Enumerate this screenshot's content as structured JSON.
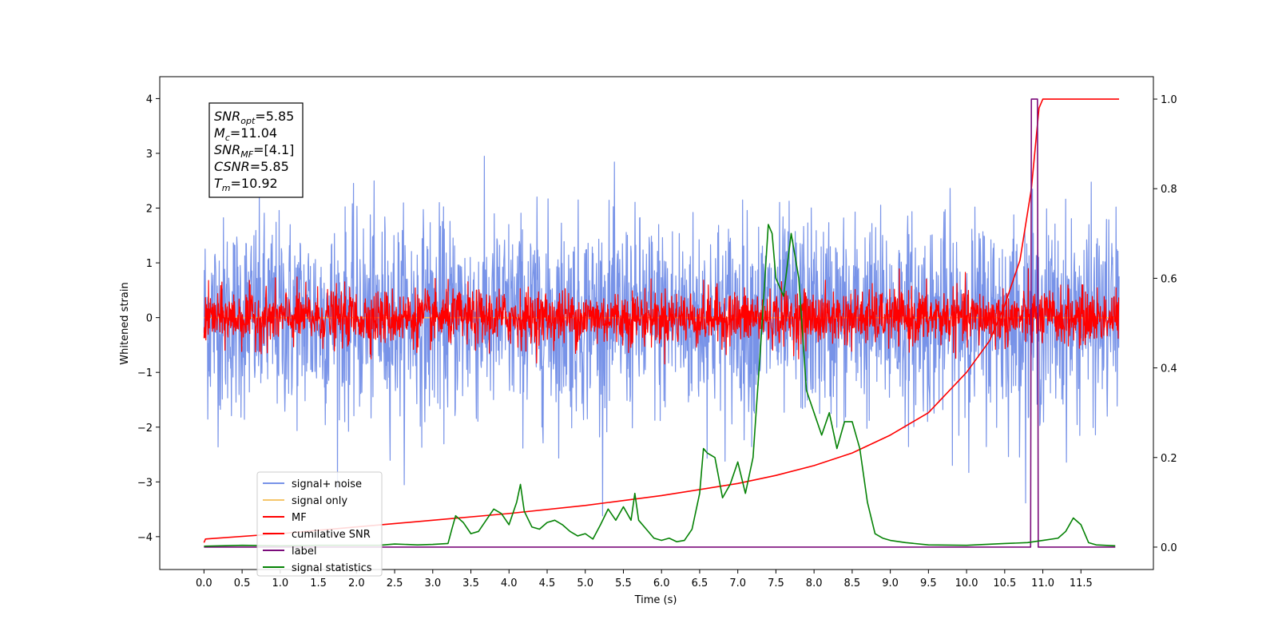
{
  "chart_data": {
    "type": "line",
    "xlabel": "Time (s)",
    "ylabel": "Whitened strain",
    "xlim": [
      -0.58,
      12.45
    ],
    "ylim": [
      -4.6,
      4.4
    ],
    "ylim_right": [
      -0.05,
      1.05
    ],
    "x_ticks": [
      "0.0",
      "0.5",
      "1.0",
      "1.5",
      "2.0",
      "2.5",
      "3.0",
      "3.5",
      "4.0",
      "4.5",
      "5.0",
      "5.5",
      "6.0",
      "6.5",
      "7.0",
      "7.5",
      "8.0",
      "8.5",
      "9.0",
      "9.5",
      "10.0",
      "10.5",
      "11.0",
      "11.5"
    ],
    "y_ticks": [
      "4",
      "3",
      "2",
      "1",
      "0",
      "−1",
      "−2",
      "−3",
      "−4"
    ],
    "y_ticks_right": [
      "1.0",
      "0.8",
      "0.6",
      "0.4",
      "0.2",
      "0.0"
    ],
    "legend_position": "lower-left",
    "grid": false,
    "annotation": {
      "lines": [
        {
          "name": "SNR",
          "sub": "opt",
          "value": "=5.85"
        },
        {
          "name": "M",
          "sub": "c",
          "value": "=11.04"
        },
        {
          "name": "SNR",
          "sub": "MF",
          "value": "=[4.1]"
        },
        {
          "name": "CSNR",
          "sub": "",
          "value": "=5.85"
        },
        {
          "name": "T",
          "sub": "m",
          "value": "=10.92"
        }
      ]
    },
    "series": [
      {
        "name": "signal+ noise",
        "color": "#7893e8",
        "axis": "left",
        "kind": "noise",
        "std": 0.9,
        "x_range": [
          0.0,
          12.0
        ]
      },
      {
        "name": "signal only",
        "color": "#f5c66b",
        "axis": "left",
        "kind": "flat",
        "x_range": [
          0.0,
          12.0
        ]
      },
      {
        "name": "MF",
        "color": "#ff0000",
        "axis": "left",
        "kind": "noise",
        "std": 0.25,
        "x_range": [
          0.0,
          12.0
        ]
      },
      {
        "name": "cumilative SNR",
        "color": "#ff0000",
        "axis": "right",
        "x": [
          0.0,
          0.02,
          1.0,
          2.0,
          3.0,
          4.0,
          5.0,
          6.0,
          7.0,
          7.5,
          8.0,
          8.5,
          9.0,
          9.5,
          10.0,
          10.3,
          10.5,
          10.7,
          10.85,
          10.95,
          11.0,
          11.5,
          12.0
        ],
        "y": [
          0.01,
          0.018,
          0.03,
          0.045,
          0.06,
          0.075,
          0.093,
          0.115,
          0.142,
          0.16,
          0.182,
          0.21,
          0.25,
          0.3,
          0.39,
          0.46,
          0.54,
          0.64,
          0.8,
          0.98,
          1.0,
          1.0,
          1.0
        ]
      },
      {
        "name": "label",
        "color": "#7b0c7b",
        "axis": "right",
        "x": [
          0.0,
          10.84,
          10.85,
          10.93,
          10.94,
          11.95
        ],
        "y": [
          0.0,
          0.0,
          1.0,
          1.0,
          0.0,
          0.0
        ]
      },
      {
        "name": "signal statistics",
        "color": "#058205",
        "axis": "right",
        "x": [
          0.0,
          0.5,
          1.0,
          1.5,
          2.0,
          2.3,
          2.5,
          2.8,
          3.0,
          3.2,
          3.25,
          3.3,
          3.4,
          3.5,
          3.6,
          3.7,
          3.8,
          3.9,
          4.0,
          4.1,
          4.15,
          4.2,
          4.3,
          4.4,
          4.5,
          4.6,
          4.7,
          4.8,
          4.9,
          5.0,
          5.1,
          5.2,
          5.3,
          5.4,
          5.5,
          5.6,
          5.65,
          5.7,
          5.8,
          5.9,
          6.0,
          6.1,
          6.2,
          6.3,
          6.4,
          6.5,
          6.55,
          6.6,
          6.7,
          6.8,
          6.9,
          7.0,
          7.1,
          7.2,
          7.3,
          7.4,
          7.45,
          7.5,
          7.6,
          7.7,
          7.8,
          7.9,
          8.0,
          8.1,
          8.2,
          8.3,
          8.4,
          8.5,
          8.6,
          8.7,
          8.8,
          8.9,
          9.0,
          9.2,
          9.5,
          10.0,
          10.5,
          10.8,
          11.0,
          11.2,
          11.3,
          11.4,
          11.5,
          11.6,
          11.7,
          11.95
        ],
        "y": [
          0.002,
          0.004,
          0.003,
          0.004,
          0.004,
          0.004,
          0.007,
          0.005,
          0.006,
          0.008,
          0.04,
          0.07,
          0.055,
          0.03,
          0.035,
          0.06,
          0.085,
          0.075,
          0.05,
          0.1,
          0.14,
          0.08,
          0.045,
          0.04,
          0.055,
          0.06,
          0.05,
          0.035,
          0.025,
          0.03,
          0.018,
          0.05,
          0.085,
          0.06,
          0.09,
          0.06,
          0.12,
          0.06,
          0.04,
          0.02,
          0.015,
          0.02,
          0.012,
          0.015,
          0.04,
          0.12,
          0.22,
          0.21,
          0.2,
          0.11,
          0.14,
          0.19,
          0.12,
          0.2,
          0.45,
          0.72,
          0.7,
          0.6,
          0.56,
          0.7,
          0.6,
          0.35,
          0.3,
          0.25,
          0.3,
          0.22,
          0.28,
          0.28,
          0.22,
          0.1,
          0.03,
          0.02,
          0.015,
          0.01,
          0.005,
          0.004,
          0.008,
          0.01,
          0.015,
          0.02,
          0.035,
          0.065,
          0.05,
          0.01,
          0.005,
          0.003
        ]
      }
    ]
  }
}
